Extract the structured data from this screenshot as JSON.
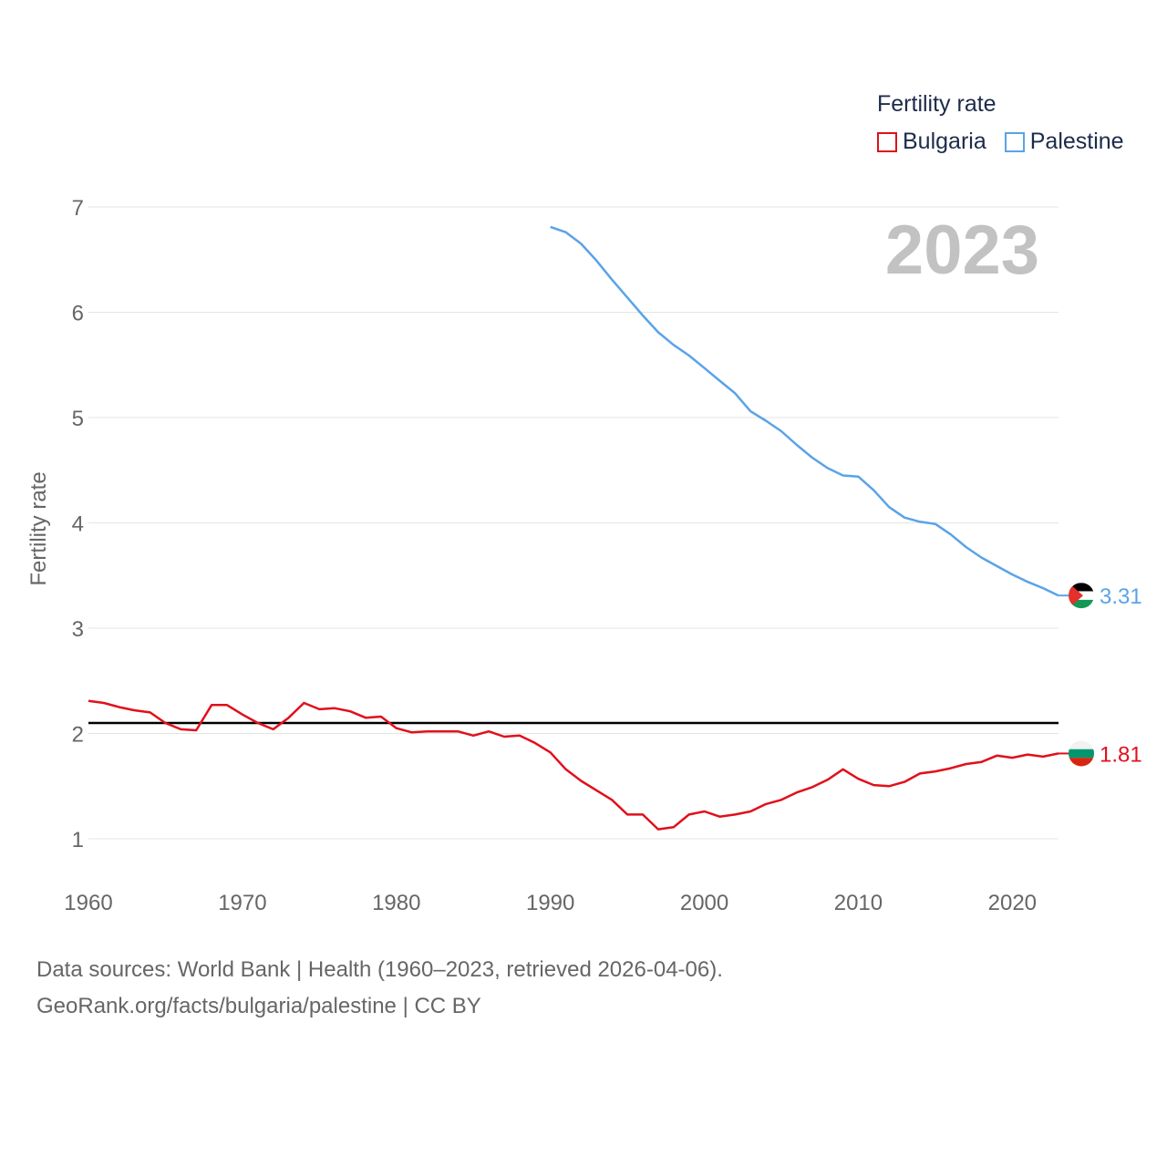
{
  "legend": {
    "title": "Fertility rate",
    "items": [
      {
        "label": "Bulgaria",
        "color": "#e0101b"
      },
      {
        "label": "Palestine",
        "color": "#5aa3e8"
      }
    ]
  },
  "year_watermark": "2023",
  "end_labels": {
    "bulgaria": "1.81",
    "palestine": "3.31"
  },
  "source": {
    "line1": "Data sources: World Bank | Health (1960–2023, retrieved 2026-04-06).",
    "line2": "GeoRank.org/facts/bulgaria/palestine | CC BY"
  },
  "chart_data": {
    "type": "line",
    "title": "",
    "xlabel": "",
    "ylabel": "Fertility rate",
    "xlim": [
      1960,
      2023
    ],
    "ylim": [
      0.6,
      7.2
    ],
    "yticks": [
      1,
      2,
      3,
      4,
      5,
      6,
      7
    ],
    "xticks": [
      1960,
      1970,
      1980,
      1990,
      2000,
      2010,
      2020
    ],
    "reference_line": {
      "y": 2.1,
      "color": "#000000"
    },
    "series": [
      {
        "name": "Bulgaria",
        "color": "#e0101b",
        "x": [
          1960,
          1961,
          1962,
          1963,
          1964,
          1965,
          1966,
          1967,
          1968,
          1969,
          1970,
          1971,
          1972,
          1973,
          1974,
          1975,
          1976,
          1977,
          1978,
          1979,
          1980,
          1981,
          1982,
          1983,
          1984,
          1985,
          1986,
          1987,
          1988,
          1989,
          1990,
          1991,
          1992,
          1993,
          1994,
          1995,
          1996,
          1997,
          1998,
          1999,
          2000,
          2001,
          2002,
          2003,
          2004,
          2005,
          2006,
          2007,
          2008,
          2009,
          2010,
          2011,
          2012,
          2013,
          2014,
          2015,
          2016,
          2017,
          2018,
          2019,
          2020,
          2021,
          2022,
          2023
        ],
        "values": [
          2.31,
          2.29,
          2.25,
          2.22,
          2.2,
          2.1,
          2.04,
          2.03,
          2.27,
          2.27,
          2.18,
          2.1,
          2.04,
          2.15,
          2.29,
          2.23,
          2.24,
          2.21,
          2.15,
          2.16,
          2.05,
          2.01,
          2.02,
          2.02,
          2.02,
          1.98,
          2.02,
          1.97,
          1.98,
          1.91,
          1.82,
          1.66,
          1.55,
          1.46,
          1.37,
          1.23,
          1.23,
          1.09,
          1.11,
          1.23,
          1.26,
          1.21,
          1.23,
          1.26,
          1.33,
          1.37,
          1.44,
          1.49,
          1.56,
          1.66,
          1.57,
          1.51,
          1.5,
          1.54,
          1.62,
          1.64,
          1.67,
          1.71,
          1.73,
          1.79,
          1.77,
          1.8,
          1.78,
          1.81
        ]
      },
      {
        "name": "Palestine",
        "color": "#5aa3e8",
        "x": [
          1990,
          1991,
          1992,
          1993,
          1994,
          1995,
          1996,
          1997,
          1998,
          1999,
          2000,
          2001,
          2002,
          2003,
          2004,
          2005,
          2006,
          2007,
          2008,
          2009,
          2010,
          2011,
          2012,
          2013,
          2014,
          2015,
          2016,
          2017,
          2018,
          2019,
          2020,
          2021,
          2022,
          2023
        ],
        "values": [
          6.81,
          6.76,
          6.65,
          6.49,
          6.31,
          6.14,
          5.97,
          5.81,
          5.69,
          5.59,
          5.47,
          5.35,
          5.23,
          5.06,
          4.97,
          4.87,
          4.74,
          4.62,
          4.52,
          4.45,
          4.44,
          4.31,
          4.15,
          4.05,
          4.01,
          3.99,
          3.89,
          3.77,
          3.67,
          3.59,
          3.51,
          3.44,
          3.38,
          3.31
        ]
      }
    ]
  }
}
